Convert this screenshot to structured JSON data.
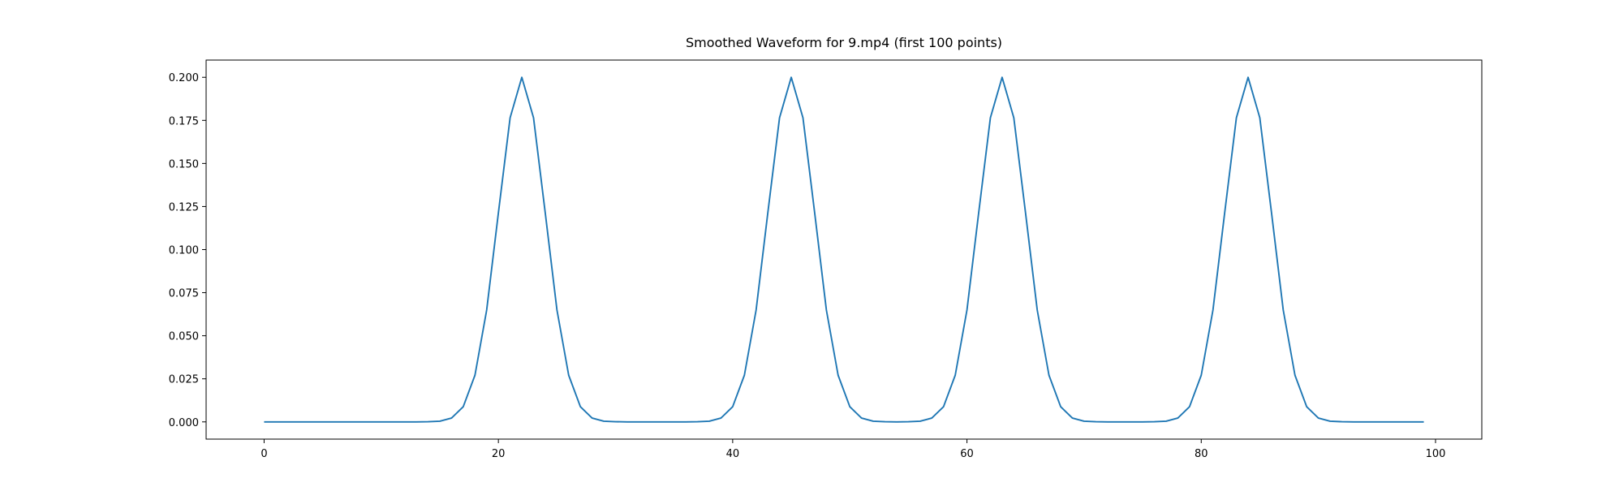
{
  "chart_data": {
    "type": "line",
    "title": "Smoothed Waveform for 9.mp4 (first 100 points)",
    "x": [
      0,
      1,
      2,
      3,
      4,
      5,
      6,
      7,
      8,
      9,
      10,
      11,
      12,
      13,
      14,
      15,
      16,
      17,
      18,
      19,
      20,
      21,
      22,
      23,
      24,
      25,
      26,
      27,
      28,
      29,
      30,
      31,
      32,
      33,
      34,
      35,
      36,
      37,
      38,
      39,
      40,
      41,
      42,
      43,
      44,
      45,
      46,
      47,
      48,
      49,
      50,
      51,
      52,
      53,
      54,
      55,
      56,
      57,
      58,
      59,
      60,
      61,
      62,
      63,
      64,
      65,
      66,
      67,
      68,
      69,
      70,
      71,
      72,
      73,
      74,
      75,
      76,
      77,
      78,
      79,
      80,
      81,
      82,
      83,
      84,
      85,
      86,
      87,
      88,
      89,
      90,
      91,
      92,
      93,
      94,
      95,
      96,
      97,
      98,
      99
    ],
    "series": [
      {
        "name": null,
        "color": "#1f77b4",
        "values": [
          0,
          0,
          0,
          0,
          0,
          0,
          0,
          0,
          0,
          0,
          0,
          0,
          0,
          0,
          0.0001,
          0.0004,
          0.0022,
          0.0088,
          0.0271,
          0.0649,
          0.1213,
          0.1765,
          0.2,
          0.1765,
          0.1213,
          0.0649,
          0.0271,
          0.0088,
          0.0022,
          0.0004,
          0.0001,
          0,
          0,
          0,
          0,
          0,
          0,
          0.0001,
          0.0004,
          0.0022,
          0.0088,
          0.0271,
          0.0649,
          0.1213,
          0.1765,
          0.2,
          0.1765,
          0.1213,
          0.0649,
          0.0271,
          0.0088,
          0.0022,
          0.0004,
          0.0001,
          0,
          0.0001,
          0.0004,
          0.0022,
          0.0088,
          0.0271,
          0.0649,
          0.1213,
          0.1765,
          0.2,
          0.1765,
          0.1213,
          0.0649,
          0.0271,
          0.0088,
          0.0022,
          0.0004,
          0.0001,
          0,
          0,
          0,
          0,
          0.0001,
          0.0004,
          0.0022,
          0.0088,
          0.0271,
          0.0649,
          0.1213,
          0.1765,
          0.2,
          0.1765,
          0.1213,
          0.0649,
          0.0271,
          0.0088,
          0.0022,
          0.0004,
          0.0001,
          0,
          0,
          0,
          0,
          0,
          0,
          0
        ]
      }
    ],
    "xlim": [
      -4.95,
      103.95
    ],
    "xticks": [
      0,
      20,
      40,
      60,
      80,
      100
    ],
    "ylim": [
      -0.01,
      0.21
    ],
    "yticks": [
      {
        "value": 0,
        "label": "0.000"
      },
      {
        "value": 0.025,
        "label": "0.025"
      },
      {
        "value": 0.05,
        "label": "0.050"
      },
      {
        "value": 0.075,
        "label": "0.075"
      },
      {
        "value": 0.1,
        "label": "0.100"
      },
      {
        "value": 0.125,
        "label": "0.125"
      },
      {
        "value": 0.15,
        "label": "0.150"
      },
      {
        "value": 0.175,
        "label": "0.175"
      },
      {
        "value": 0.2,
        "label": "0.200"
      }
    ],
    "grid": false
  }
}
